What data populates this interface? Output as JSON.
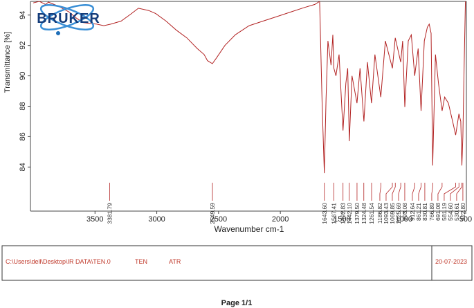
{
  "chart_data": {
    "type": "line",
    "xlabel": "Wavenumber cm-1",
    "ylabel": "Transmittance [%]",
    "color": "#b22222",
    "x": [
      4000,
      3950,
      3900,
      3877,
      3800,
      3709,
      3650,
      3597,
      3485,
      3429,
      3373,
      3289,
      3205,
      3149,
      3065,
      3009,
      2925,
      2841,
      2757,
      2673,
      2617,
      2590,
      2550,
      2515,
      2449,
      2365,
      2253,
      2141,
      2029,
      1917,
      1805,
      1721,
      1682,
      1662,
      1644,
      1630,
      1615,
      1590,
      1575,
      1567,
      1550,
      1525,
      1493,
      1470,
      1455,
      1442,
      1420,
      1380,
      1355,
      1324,
      1295,
      1262,
      1235,
      1187,
      1150,
      1093,
      1070,
      1026,
      1010,
      993,
      965,
      940,
      913,
      885,
      861,
      835,
      810,
      795,
      780,
      767,
      745,
      720,
      691,
      670,
      640,
      600,
      581,
      555,
      540,
      531,
      523,
      512,
      502
    ],
    "values": [
      94.8,
      94.9,
      94.7,
      94.85,
      94.6,
      94.2,
      93.8,
      93.5,
      93.4,
      93.3,
      93.4,
      93.6,
      94.1,
      94.45,
      94.3,
      94.1,
      93.6,
      93.0,
      92.5,
      91.8,
      91.4,
      91.0,
      90.8,
      91.2,
      92.0,
      92.7,
      93.3,
      93.6,
      93.9,
      94.2,
      94.5,
      94.7,
      94.9,
      88.2,
      83.6,
      88.5,
      92.3,
      90.7,
      92.7,
      90.5,
      90.0,
      91.4,
      86.4,
      89.5,
      90.5,
      85.7,
      90.0,
      88.2,
      90.5,
      87.0,
      90.9,
      88.2,
      91.4,
      88.6,
      92.3,
      90.5,
      92.5,
      90.9,
      92.3,
      87.95,
      92.3,
      92.7,
      90.0,
      91.8,
      87.7,
      92.3,
      93.2,
      93.4,
      92.8,
      84.1,
      91.4,
      89.5,
      87.7,
      88.6,
      88.2,
      86.8,
      86.1,
      87.5,
      87.0,
      84.1,
      86.0,
      91.0,
      94.9
    ],
    "xlim": [
      4000,
      500
    ],
    "ylim": [
      81.1,
      94.9
    ],
    "xticks": [
      3500,
      3000,
      2500,
      2000,
      1500,
      1000,
      500
    ],
    "yticks": [
      84,
      86,
      88,
      90,
      92,
      94
    ],
    "peaks": {
      "values": [
        3381.79,
        2549.59,
        1643.6,
        1567.41,
        1492.83,
        1442.1,
        1379.5,
        1324.48,
        1261.54,
        1186.82,
        1093.43,
        1069.85,
        1025.69,
        993.08,
        912.64,
        861.21,
        830.81,
        766.89,
        691.08,
        581.19,
        554.6,
        530.61,
        522.8
      ],
      "value_labels": [
        "3381.79",
        "2549.59",
        "1643.60",
        "1567.41",
        "1492.83",
        "1442.10",
        "1379.50",
        "1324.48",
        "1261.54",
        "1186.82",
        "1093.43",
        "1069.85",
        "1025.69",
        "993.08",
        "912.64",
        "861.21",
        "830.81",
        "766.89",
        "691.08",
        "581.19",
        "554.60",
        "530.61",
        "522.80"
      ]
    }
  },
  "logo": "BRUKER",
  "footer": {
    "path": "C:\\Users\\dell\\Desktop\\IR DATA\\TEN.0",
    "sample": "TEN",
    "mode": "ATR",
    "date": "20-07-2023"
  },
  "page": "Page 1/1"
}
